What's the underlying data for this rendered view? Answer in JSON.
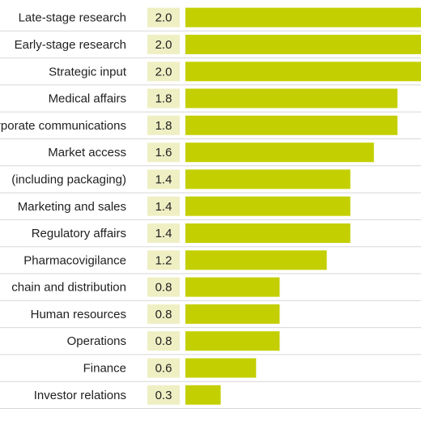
{
  "chart_data": {
    "type": "bar",
    "orientation": "horizontal",
    "categories": [
      "Late-stage research",
      "Early-stage research",
      "Strategic input",
      "Medical affairs",
      "Corporate communications",
      "Market access",
      "(including packaging)",
      "Marketing and sales",
      "Regulatory affairs",
      "Pharmacovigilance",
      "chain and distribution",
      "Human resources",
      "Operations",
      "Finance",
      "Investor relations"
    ],
    "values": [
      2.0,
      2.0,
      2.0,
      1.8,
      1.8,
      1.6,
      1.4,
      1.4,
      1.4,
      1.2,
      0.8,
      0.8,
      0.8,
      0.6,
      0.3
    ],
    "value_labels": [
      "2.0",
      "2.0",
      "2.0",
      "1.8",
      "1.8",
      "1.6",
      "1.4",
      "1.4",
      "1.4",
      "1.2",
      "0.8",
      "0.8",
      "0.8",
      "0.6",
      "0.3"
    ],
    "title": "",
    "xlabel": "",
    "ylabel": "",
    "xlim": [
      0,
      2.0
    ],
    "grid": "horizontal separators",
    "legend": "none",
    "colors": {
      "bar": "#c3cf00",
      "value_box": "#efefc4",
      "separator": "#d7d7d7",
      "text": "#1f1f1f"
    }
  }
}
